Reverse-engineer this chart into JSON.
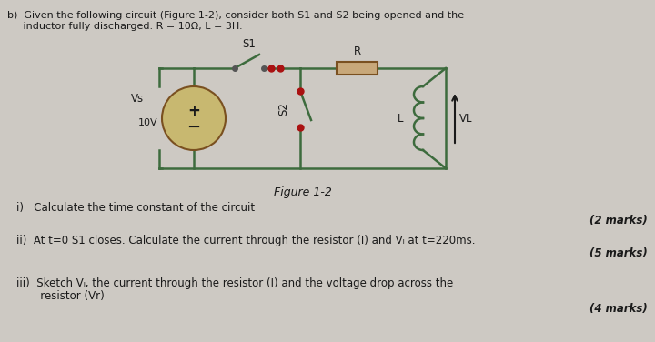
{
  "bg_color": "#cdc9c3",
  "text_color": "#1a1a1a",
  "title_line1": "b)  Given the following circuit (Figure 1-2), consider both S1 and S2 being opened and the",
  "title_line2": "     inductor fully discharged. R = 10Ω, L = 3H.",
  "figure_label": "Figure 1-2",
  "q1": "i)   Calculate the time constant of the circuit",
  "q1_marks": "(2 marks)",
  "q2": "ii)  At t=0 S1 closes. Calculate the current through the resistor (I) and Vₗ at t=220ms.",
  "q2_marks": "(5 marks)",
  "q3_line1": "iii)  Sketch Vₗ, the current through the resistor (I) and the voltage drop across the",
  "q3_line2": "       resistor (Vr)",
  "q3_marks": "(4 marks)",
  "circuit_color": "#3d6b3d",
  "resistor_fill": "#c8a87a",
  "resistor_edge": "#7a5020",
  "source_fill": "#c8b870",
  "source_edge": "#7a5020",
  "dot_color": "#aa1111",
  "wire_color": "#3d6b3d",
  "arrow_color": "#1a1a1a"
}
